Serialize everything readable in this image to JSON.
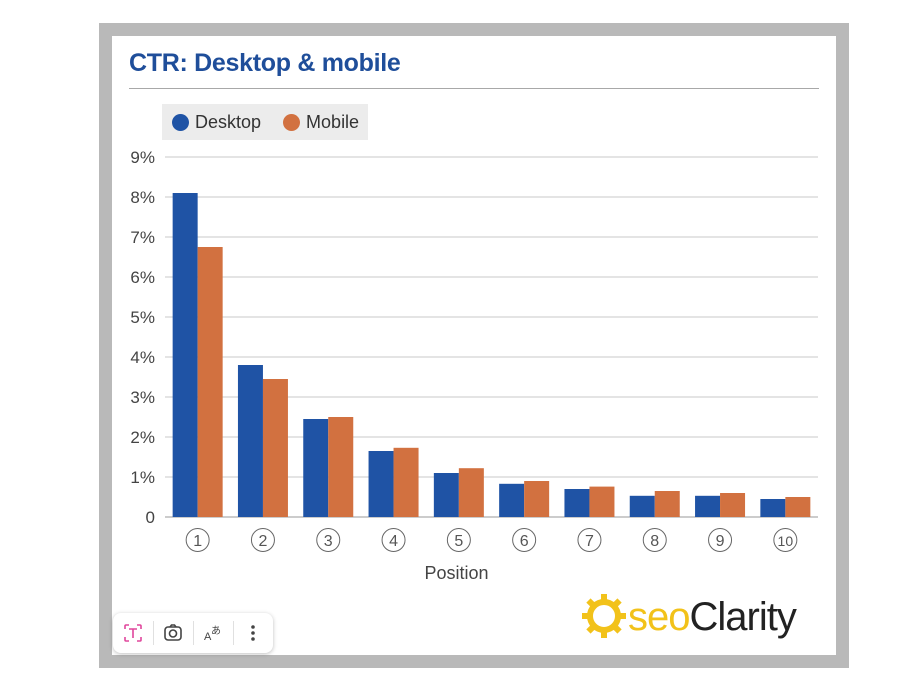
{
  "title": "CTR: Desktop & mobile",
  "brand": {
    "logo_text": "seoClarity",
    "logo_prefix": "seo",
    "logo_suffix": "Clarity"
  },
  "colors": {
    "desktop": "#1f53a5",
    "mobile": "#d27140",
    "title": "#1f4e9a",
    "logo_gold": "#f2c21a"
  },
  "toolbar": {
    "buttons": [
      {
        "name": "text-select-button",
        "icon": "text-select-icon"
      },
      {
        "name": "lens-search-button",
        "icon": "camera-lens-icon"
      },
      {
        "name": "translate-button",
        "icon": "translate-icon"
      },
      {
        "name": "more-options-button",
        "icon": "more-vertical-icon"
      }
    ]
  },
  "chart_data": {
    "type": "bar",
    "title": "CTR: Desktop & mobile",
    "xlabel": "Position",
    "ylabel": "",
    "categories": [
      "1",
      "2",
      "3",
      "4",
      "5",
      "6",
      "7",
      "8",
      "9",
      "10"
    ],
    "series": [
      {
        "name": "Desktop",
        "values": [
          8.1,
          3.8,
          2.45,
          1.65,
          1.1,
          0.83,
          0.7,
          0.53,
          0.53,
          0.45
        ]
      },
      {
        "name": "Mobile",
        "values": [
          6.75,
          3.45,
          2.5,
          1.73,
          1.22,
          0.9,
          0.76,
          0.65,
          0.6,
          0.5
        ]
      }
    ],
    "ylim": [
      0,
      9
    ],
    "yticks": [
      0,
      1,
      2,
      3,
      4,
      5,
      6,
      7,
      8,
      9
    ],
    "ytick_labels": [
      "0",
      "1%",
      "2%",
      "3%",
      "4%",
      "5%",
      "6%",
      "7%",
      "8%",
      "9%"
    ],
    "grid": true,
    "legend_position": "top-left"
  }
}
